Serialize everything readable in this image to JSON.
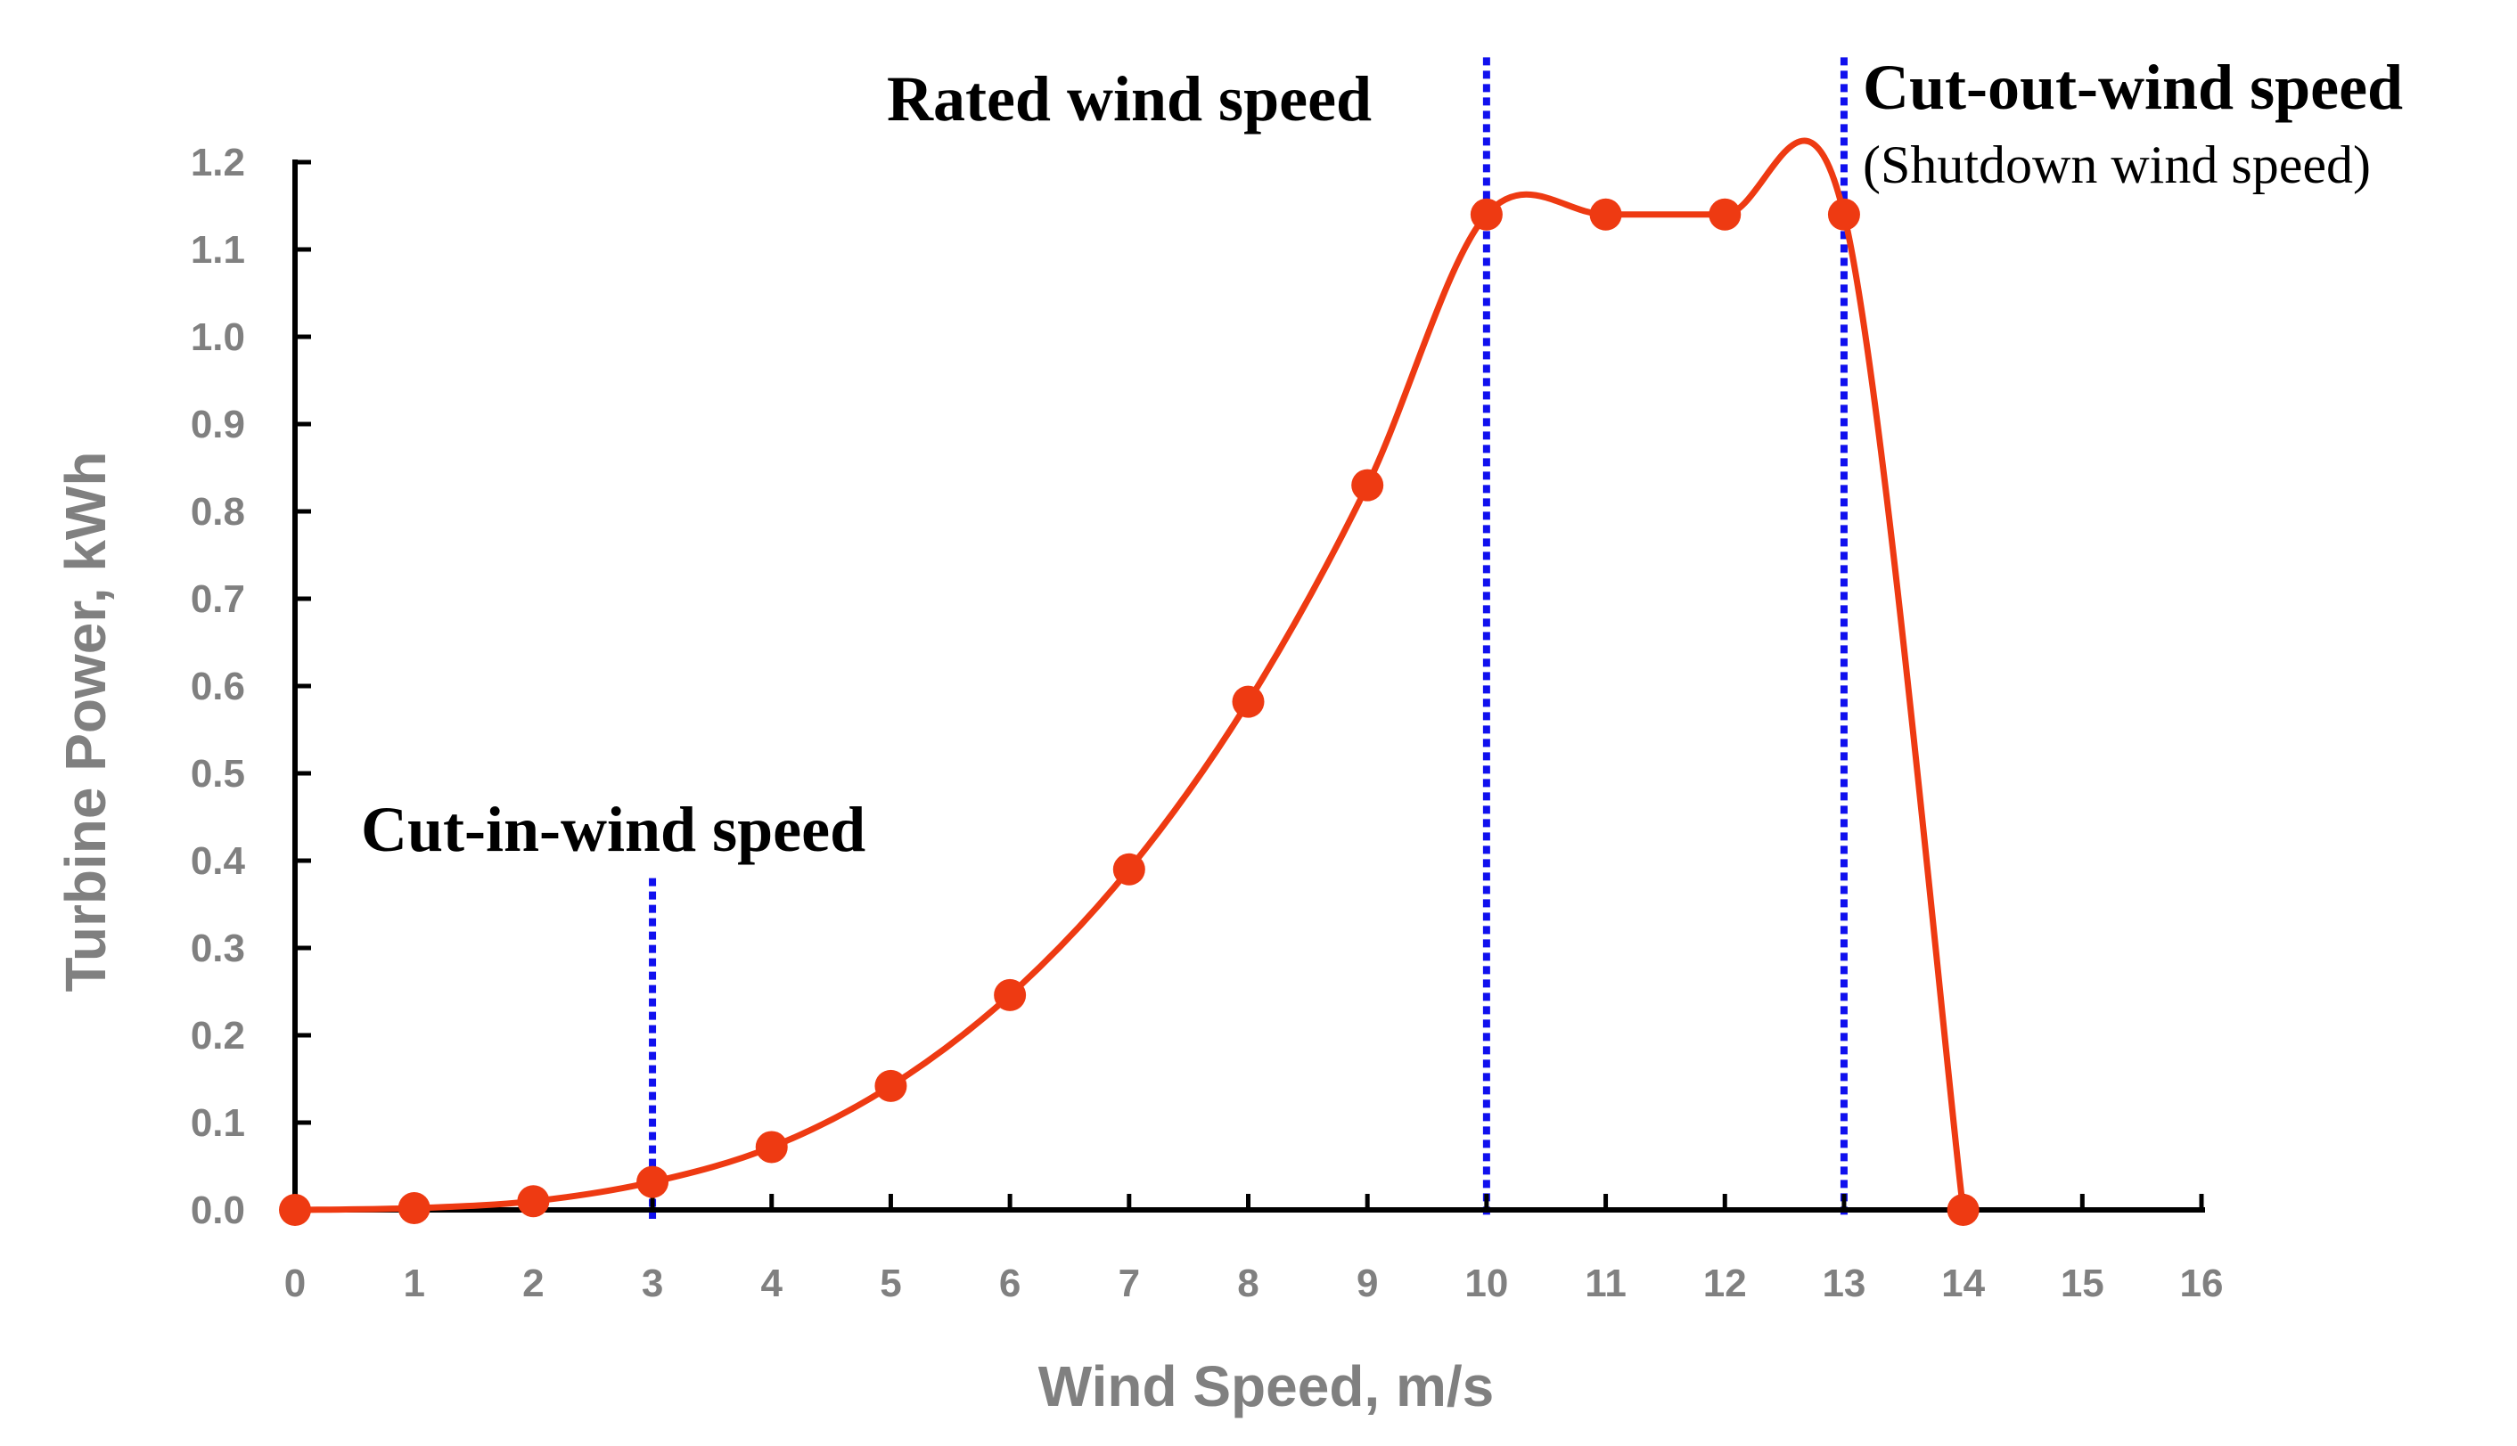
{
  "chart_data": {
    "type": "line",
    "title": "",
    "xlabel": "Wind Speed, m/s",
    "ylabel": "Turbine Power, kWh",
    "xlim": [
      0,
      16
    ],
    "ylim": [
      0,
      1.2
    ],
    "x_ticks": [
      "0",
      "1",
      "2",
      "3",
      "4",
      "5",
      "6",
      "7",
      "8",
      "9",
      "10",
      "11",
      "12",
      "13",
      "14",
      "15",
      "16"
    ],
    "y_ticks": [
      "0.0",
      "0.1",
      "0.2",
      "0.3",
      "0.4",
      "0.5",
      "0.6",
      "0.7",
      "0.8",
      "0.9",
      "1.0",
      "1.1",
      "1.2"
    ],
    "grid": false,
    "series": [
      {
        "name": "Turbine power",
        "color": "#ee3a12",
        "x": [
          0,
          1,
          2,
          3,
          4,
          5,
          6,
          7,
          8,
          9,
          10,
          11,
          12,
          13,
          14
        ],
        "values": [
          0.0,
          0.002,
          0.01,
          0.032,
          0.072,
          0.142,
          0.246,
          0.39,
          0.582,
          0.83,
          1.14,
          1.14,
          1.14,
          1.14,
          0.0
        ]
      }
    ],
    "reference_lines": [
      {
        "name": "cut-in",
        "x": 3,
        "y_max": 0.38,
        "color": "#1010ee"
      },
      {
        "name": "rated",
        "x": 10,
        "y_max": 1.32,
        "color": "#1010ee"
      },
      {
        "name": "cut-out",
        "x": 13,
        "y_max": 1.32,
        "color": "#1010ee"
      }
    ],
    "annotations": {
      "cut_in": "Cut-in-wind speed",
      "rated": "Rated wind speed",
      "cut_out": "Cut-out-wind speed",
      "cut_out_sub": "(Shutdown wind speed)"
    }
  }
}
